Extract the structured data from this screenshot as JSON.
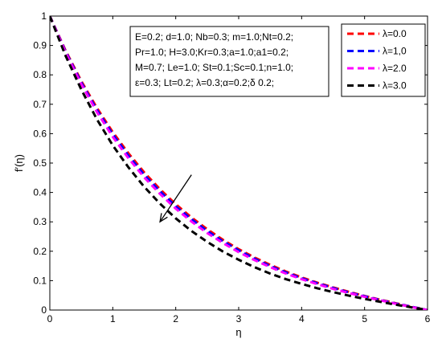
{
  "chart_data": {
    "type": "line",
    "title": "",
    "xlabel": "η",
    "ylabel": "f′(η)",
    "xlim": [
      0,
      6
    ],
    "ylim": [
      0,
      1
    ],
    "x_ticks": [
      "0",
      "1",
      "2",
      "3",
      "4",
      "5",
      "6"
    ],
    "y_ticks": [
      "0",
      "0.1",
      "0.2",
      "0.3",
      "0.4",
      "0.5",
      "0.6",
      "0.7",
      "0.8",
      "0.9",
      "1"
    ],
    "grid": false,
    "legend_position": "top-right",
    "annotation_lines": [
      "E=0.2; d=1.0; Nb=0.3; m=1.0;Nt=0.2;",
      "Pr=1.0; H=3.0;Kr=0.3;a=1.0;a1=0.2;",
      "M=0.7; Le=1.0; St=0.1;Sc=0.1;n=1.0;",
      "ε=0.3; Lt=0.2; λ=0.3;α=0.2;δ 0.2;"
    ],
    "arrow": {
      "from": [
        2.25,
        0.46
      ],
      "to": [
        1.75,
        0.3
      ]
    },
    "x": [
      0,
      0.25,
      0.5,
      0.75,
      1,
      1.25,
      1.5,
      1.75,
      2,
      2.25,
      2.5,
      2.75,
      3,
      3.25,
      3.5,
      3.75,
      4,
      4.25,
      4.5,
      4.75,
      5,
      5.25,
      5.5,
      5.75,
      6
    ],
    "series": [
      {
        "name": "λ=0.0",
        "color": "#ff0000",
        "values": [
          1.0,
          0.883,
          0.779,
          0.687,
          0.605,
          0.533,
          0.468,
          0.411,
          0.36,
          0.315,
          0.275,
          0.239,
          0.207,
          0.179,
          0.154,
          0.131,
          0.111,
          0.093,
          0.077,
          0.062,
          0.048,
          0.035,
          0.023,
          0.011,
          0.0
        ]
      },
      {
        "name": "λ=1,0",
        "color": "#0000ff",
        "values": [
          1.0,
          0.88,
          0.774,
          0.68,
          0.598,
          0.525,
          0.46,
          0.404,
          0.353,
          0.309,
          0.269,
          0.234,
          0.203,
          0.175,
          0.15,
          0.128,
          0.108,
          0.091,
          0.075,
          0.06,
          0.047,
          0.034,
          0.022,
          0.011,
          0.0
        ]
      },
      {
        "name": "λ=2.0",
        "color": "#ff00ff",
        "values": [
          1.0,
          0.876,
          0.768,
          0.673,
          0.589,
          0.516,
          0.451,
          0.395,
          0.345,
          0.301,
          0.262,
          0.228,
          0.197,
          0.17,
          0.146,
          0.124,
          0.105,
          0.088,
          0.072,
          0.058,
          0.045,
          0.033,
          0.021,
          0.01,
          0.0
        ]
      },
      {
        "name": "λ=3.0",
        "color": "#000000",
        "values": [
          1.0,
          0.865,
          0.75,
          0.648,
          0.56,
          0.485,
          0.419,
          0.362,
          0.312,
          0.269,
          0.232,
          0.199,
          0.171,
          0.146,
          0.124,
          0.105,
          0.089,
          0.074,
          0.061,
          0.049,
          0.038,
          0.028,
          0.018,
          0.009,
          0.0
        ]
      }
    ]
  }
}
